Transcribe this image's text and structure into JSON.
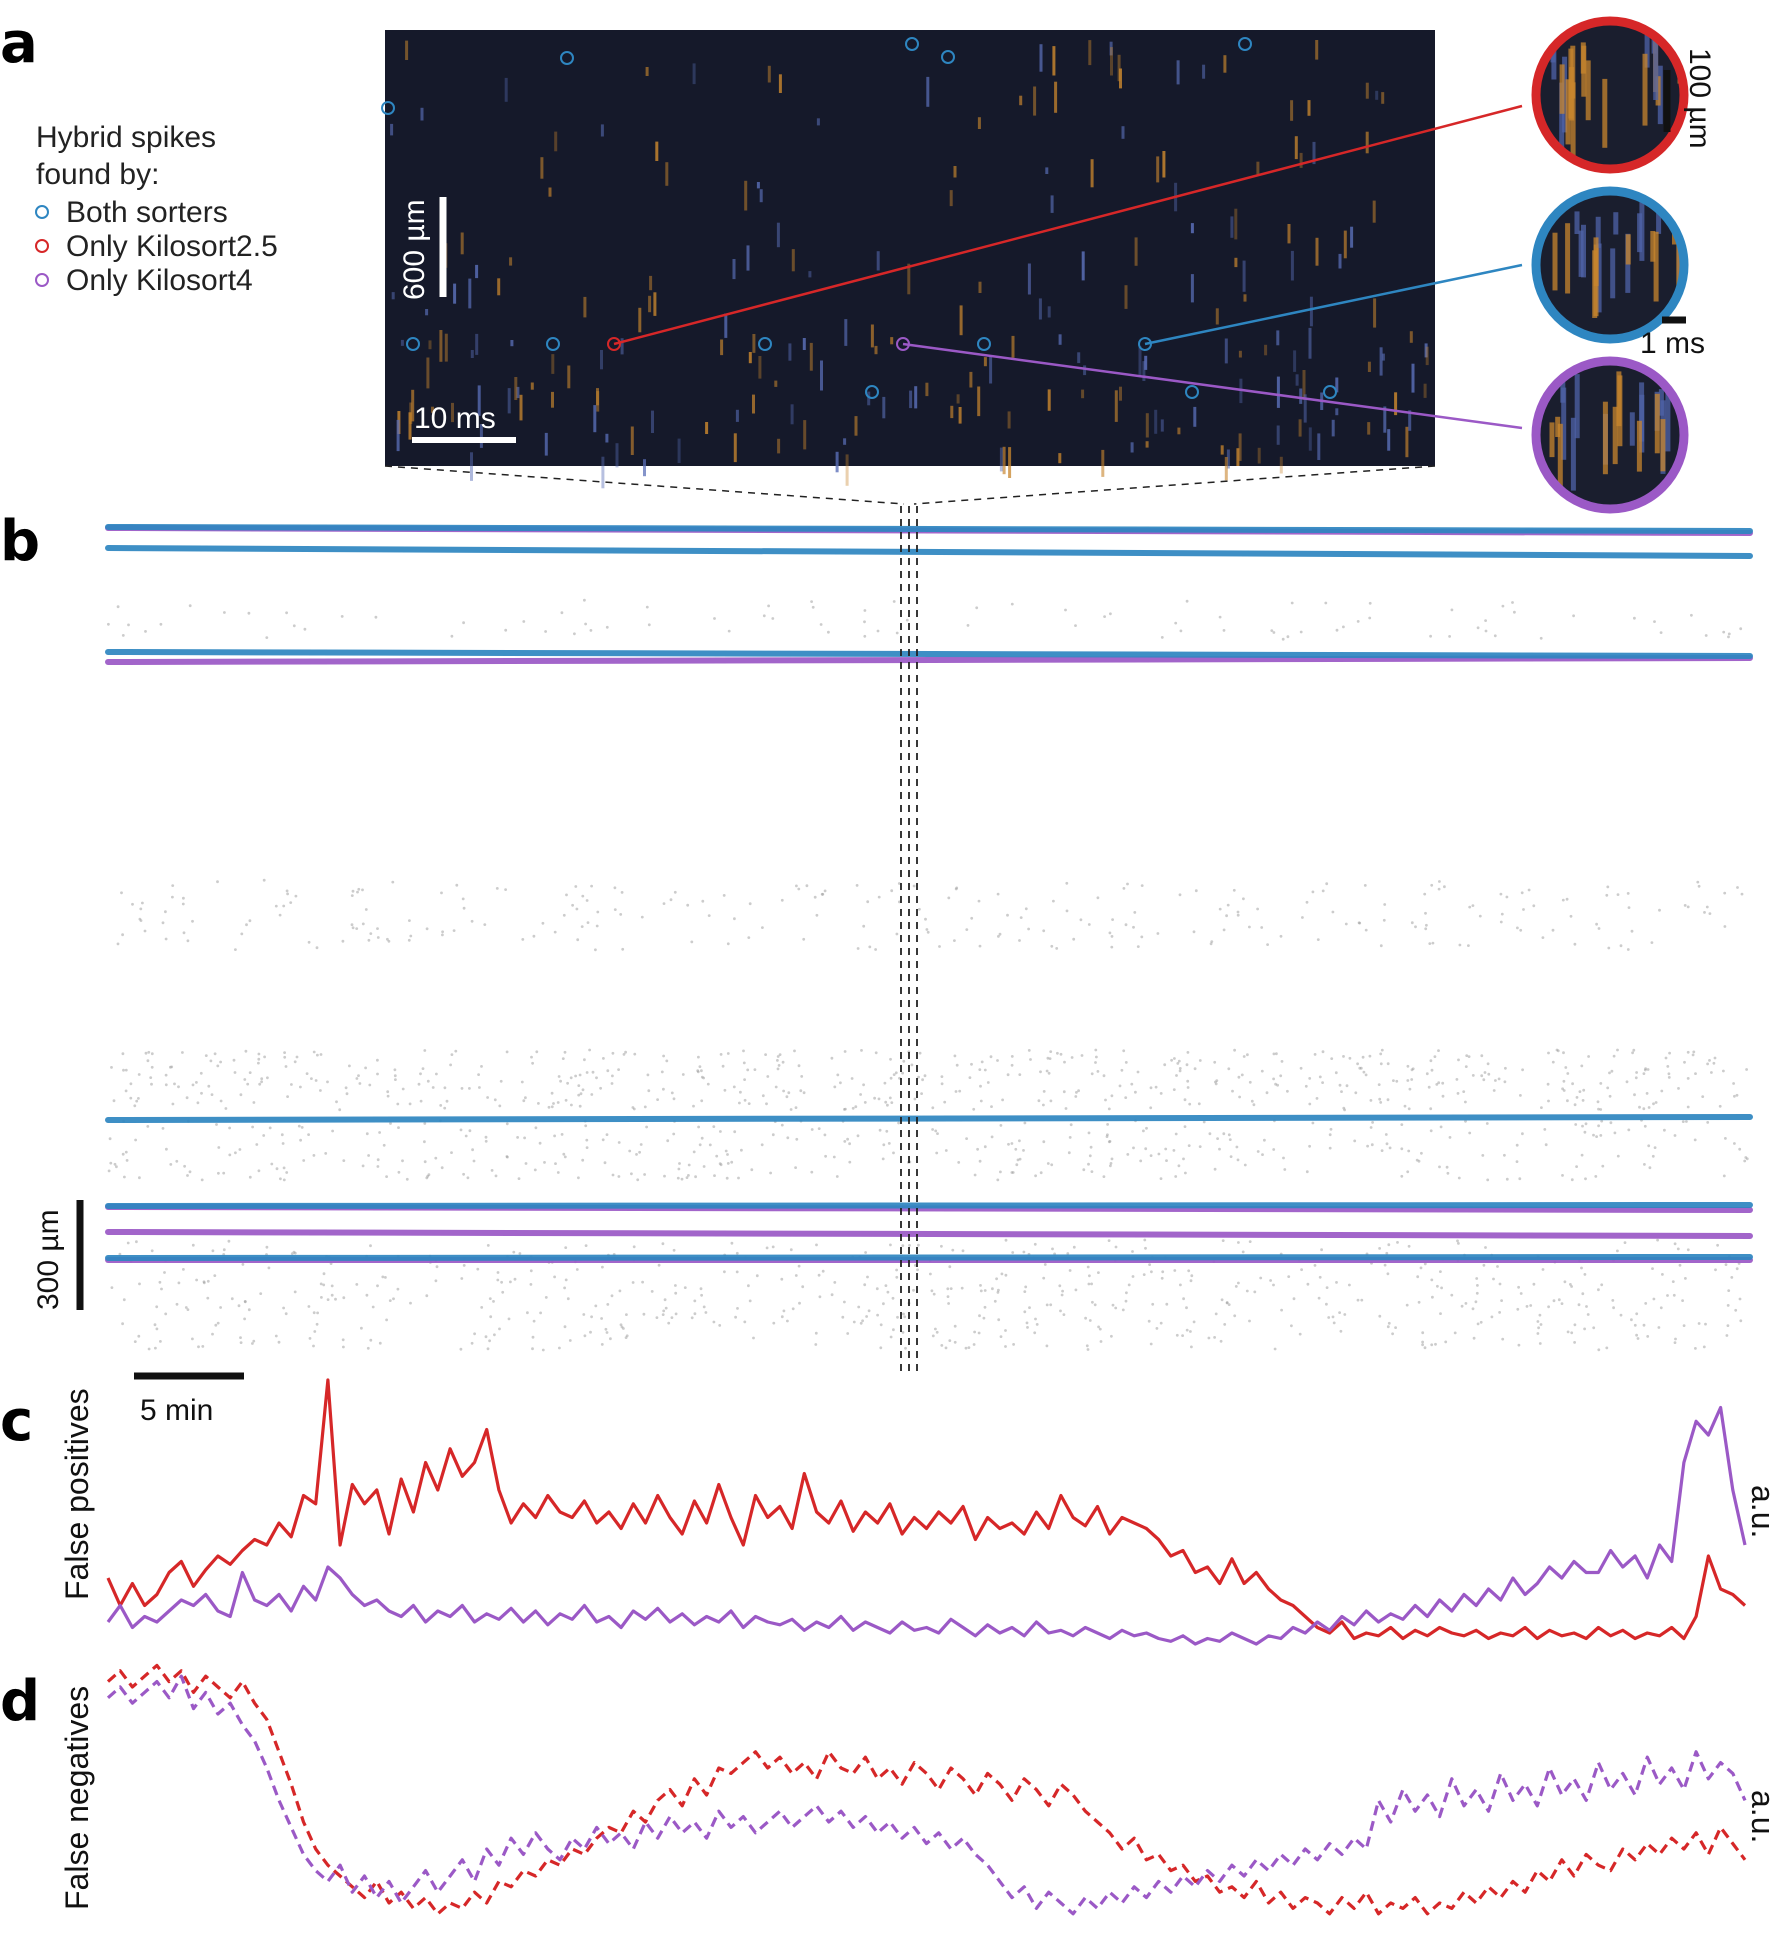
{
  "panels": {
    "a": "a",
    "b": "b",
    "c": "c",
    "d": "d"
  },
  "legend": {
    "title_line1": "Hybrid spikes",
    "title_line2": "found by:",
    "items": [
      {
        "label": "Both sorters",
        "color": "#2e86c1"
      },
      {
        "label": "Only Kilosort2.5",
        "color": "#d62728"
      },
      {
        "label": "Only Kilosort4",
        "color": "#9b59c6"
      }
    ]
  },
  "colors": {
    "ks25": "#d62728",
    "ks4": "#9b59c6",
    "both": "#2e86c1",
    "background_spikes": "#9a9a9a",
    "raster_bg": "#15192a"
  },
  "scalebars": {
    "raster_space": "600 µm",
    "raster_time": "10 ms",
    "inset_space": "100 µm",
    "inset_time": "1 ms",
    "drift_space": "300 µm",
    "drift_time": "5 min"
  },
  "axes": {
    "c_ylabel": "False positives",
    "d_ylabel": "False negatives",
    "unit": "a.u."
  },
  "chart_data": [
    {
      "type": "scatter",
      "panel": "b",
      "x_unit": "min",
      "depth_unit": "µm",
      "series": [
        {
          "name": "Both sorters",
          "color": "#2e86c1",
          "drift_lines_depth_um": [
            2235,
            2222,
            2162,
            1440,
            1375,
            1338,
            1322
          ]
        },
        {
          "name": "Only Kilosort4",
          "color": "#9b59c6",
          "drift_lines_depth_um": [
            2235,
            2165,
            1375,
            1357,
            1338
          ]
        }
      ]
    },
    {
      "type": "line",
      "panel": "c",
      "ylabel": "False positives",
      "unit": "a.u.",
      "series": [
        {
          "name": "Only Kilosort2.5",
          "color": "#d62728",
          "values": [
            0.28,
            0.18,
            0.26,
            0.18,
            0.22,
            0.3,
            0.34,
            0.25,
            0.31,
            0.36,
            0.33,
            0.38,
            0.42,
            0.4,
            0.48,
            0.43,
            0.58,
            0.55,
            1.0,
            0.4,
            0.62,
            0.55,
            0.6,
            0.44,
            0.64,
            0.52,
            0.7,
            0.6,
            0.75,
            0.65,
            0.7,
            0.82,
            0.6,
            0.48,
            0.55,
            0.5,
            0.58,
            0.52,
            0.5,
            0.56,
            0.48,
            0.52,
            0.46,
            0.55,
            0.48,
            0.58,
            0.5,
            0.44,
            0.56,
            0.48,
            0.62,
            0.5,
            0.4,
            0.58,
            0.5,
            0.54,
            0.46,
            0.66,
            0.52,
            0.48,
            0.56,
            0.45,
            0.52,
            0.48,
            0.55,
            0.44,
            0.5,
            0.46,
            0.52,
            0.48,
            0.54,
            0.42,
            0.5,
            0.46,
            0.48,
            0.44,
            0.52,
            0.46,
            0.58,
            0.5,
            0.47,
            0.54,
            0.44,
            0.5,
            0.48,
            0.46,
            0.42,
            0.36,
            0.38,
            0.3,
            0.32,
            0.26,
            0.35,
            0.26,
            0.3,
            0.24,
            0.2,
            0.18,
            0.14,
            0.1,
            0.08,
            0.12,
            0.06,
            0.08,
            0.07,
            0.1,
            0.06,
            0.09,
            0.07,
            0.1,
            0.08,
            0.07,
            0.09,
            0.06,
            0.08,
            0.07,
            0.1,
            0.06,
            0.09,
            0.07,
            0.08,
            0.06,
            0.1,
            0.07,
            0.09,
            0.06,
            0.08,
            0.07,
            0.1,
            0.06,
            0.14,
            0.36,
            0.24,
            0.22,
            0.18
          ]
        },
        {
          "name": "Only Kilosort4",
          "color": "#9b59c6",
          "values": [
            0.12,
            0.18,
            0.1,
            0.14,
            0.12,
            0.16,
            0.2,
            0.18,
            0.22,
            0.16,
            0.14,
            0.3,
            0.2,
            0.18,
            0.22,
            0.16,
            0.25,
            0.2,
            0.32,
            0.28,
            0.22,
            0.18,
            0.2,
            0.16,
            0.14,
            0.18,
            0.12,
            0.16,
            0.14,
            0.18,
            0.12,
            0.15,
            0.13,
            0.17,
            0.12,
            0.16,
            0.11,
            0.15,
            0.13,
            0.18,
            0.12,
            0.14,
            0.1,
            0.16,
            0.13,
            0.17,
            0.12,
            0.15,
            0.11,
            0.14,
            0.12,
            0.16,
            0.1,
            0.14,
            0.12,
            0.11,
            0.13,
            0.09,
            0.12,
            0.1,
            0.14,
            0.09,
            0.12,
            0.1,
            0.08,
            0.12,
            0.09,
            0.1,
            0.08,
            0.13,
            0.1,
            0.07,
            0.11,
            0.08,
            0.1,
            0.07,
            0.12,
            0.08,
            0.09,
            0.07,
            0.1,
            0.08,
            0.06,
            0.09,
            0.07,
            0.08,
            0.06,
            0.05,
            0.07,
            0.04,
            0.06,
            0.05,
            0.08,
            0.06,
            0.04,
            0.07,
            0.06,
            0.1,
            0.08,
            0.12,
            0.09,
            0.14,
            0.11,
            0.16,
            0.12,
            0.15,
            0.13,
            0.18,
            0.14,
            0.2,
            0.16,
            0.22,
            0.18,
            0.24,
            0.2,
            0.28,
            0.22,
            0.26,
            0.32,
            0.28,
            0.34,
            0.3,
            0.3,
            0.38,
            0.32,
            0.36,
            0.28,
            0.4,
            0.34,
            0.7,
            0.85,
            0.8,
            0.9,
            0.6,
            0.4
          ]
        }
      ]
    },
    {
      "type": "line",
      "panel": "d",
      "ylabel": "False negatives",
      "unit": "a.u.",
      "series": [
        {
          "name": "Only Kilosort2.5",
          "color": "#d62728",
          "values": [
            0.92,
            0.96,
            0.9,
            0.94,
            0.98,
            0.92,
            0.96,
            0.88,
            0.94,
            0.9,
            0.86,
            0.92,
            0.84,
            0.78,
            0.66,
            0.54,
            0.4,
            0.3,
            0.24,
            0.2,
            0.16,
            0.12,
            0.18,
            0.1,
            0.14,
            0.08,
            0.12,
            0.06,
            0.1,
            0.08,
            0.14,
            0.1,
            0.18,
            0.16,
            0.22,
            0.2,
            0.26,
            0.24,
            0.3,
            0.28,
            0.34,
            0.38,
            0.36,
            0.44,
            0.4,
            0.48,
            0.52,
            0.46,
            0.56,
            0.5,
            0.6,
            0.58,
            0.62,
            0.66,
            0.6,
            0.64,
            0.58,
            0.62,
            0.56,
            0.66,
            0.6,
            0.58,
            0.64,
            0.56,
            0.6,
            0.54,
            0.62,
            0.58,
            0.52,
            0.6,
            0.56,
            0.5,
            0.58,
            0.54,
            0.48,
            0.56,
            0.52,
            0.46,
            0.54,
            0.5,
            0.44,
            0.4,
            0.36,
            0.3,
            0.34,
            0.26,
            0.28,
            0.22,
            0.24,
            0.18,
            0.2,
            0.14,
            0.16,
            0.12,
            0.18,
            0.1,
            0.14,
            0.08,
            0.12,
            0.1,
            0.06,
            0.12,
            0.08,
            0.14,
            0.06,
            0.1,
            0.08,
            0.12,
            0.06,
            0.1,
            0.08,
            0.14,
            0.1,
            0.16,
            0.12,
            0.18,
            0.14,
            0.22,
            0.18,
            0.26,
            0.2,
            0.28,
            0.24,
            0.22,
            0.3,
            0.26,
            0.32,
            0.28,
            0.34,
            0.3,
            0.36,
            0.28,
            0.38,
            0.32,
            0.26
          ]
        },
        {
          "name": "Only Kilosort4",
          "color": "#9b59c6",
          "values": [
            0.86,
            0.9,
            0.84,
            0.88,
            0.92,
            0.86,
            0.94,
            0.82,
            0.88,
            0.8,
            0.84,
            0.76,
            0.7,
            0.6,
            0.48,
            0.38,
            0.28,
            0.22,
            0.18,
            0.24,
            0.14,
            0.2,
            0.12,
            0.18,
            0.1,
            0.16,
            0.22,
            0.14,
            0.2,
            0.26,
            0.18,
            0.3,
            0.24,
            0.34,
            0.28,
            0.36,
            0.3,
            0.26,
            0.34,
            0.3,
            0.38,
            0.32,
            0.36,
            0.3,
            0.4,
            0.34,
            0.42,
            0.36,
            0.4,
            0.34,
            0.44,
            0.38,
            0.42,
            0.36,
            0.4,
            0.44,
            0.38,
            0.42,
            0.46,
            0.4,
            0.44,
            0.38,
            0.42,
            0.36,
            0.4,
            0.34,
            0.38,
            0.32,
            0.36,
            0.3,
            0.34,
            0.28,
            0.24,
            0.18,
            0.12,
            0.16,
            0.08,
            0.14,
            0.1,
            0.06,
            0.12,
            0.08,
            0.14,
            0.1,
            0.16,
            0.12,
            0.18,
            0.14,
            0.2,
            0.16,
            0.22,
            0.18,
            0.24,
            0.2,
            0.26,
            0.22,
            0.28,
            0.24,
            0.3,
            0.26,
            0.32,
            0.28,
            0.34,
            0.3,
            0.48,
            0.4,
            0.52,
            0.44,
            0.5,
            0.42,
            0.56,
            0.46,
            0.52,
            0.44,
            0.58,
            0.48,
            0.54,
            0.46,
            0.6,
            0.5,
            0.56,
            0.48,
            0.62,
            0.52,
            0.58,
            0.5,
            0.64,
            0.54,
            0.6,
            0.52,
            0.66,
            0.56,
            0.62,
            0.58,
            0.48
          ]
        }
      ]
    }
  ]
}
